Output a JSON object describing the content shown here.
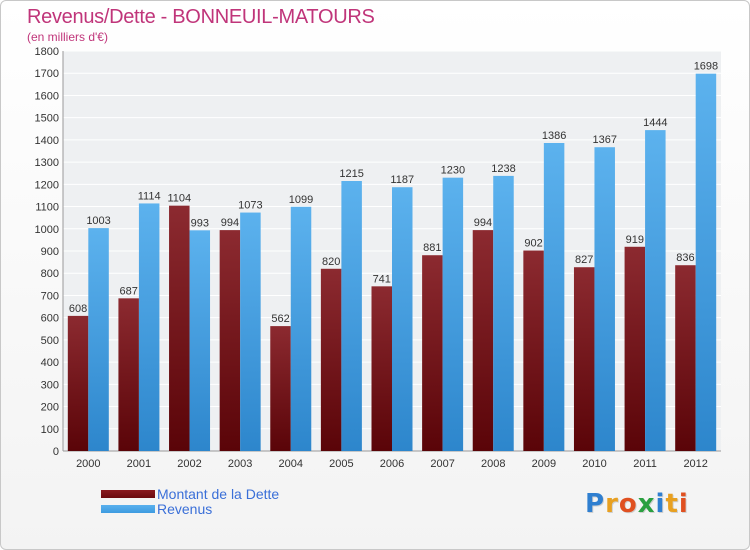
{
  "header": {
    "title": "Revenus/Dette - BONNEUIL-MATOURS",
    "subtitle": "(en milliers d'€)"
  },
  "chart_data": {
    "type": "bar",
    "title": "Revenus/Dette - BONNEUIL-MATOURS",
    "subtitle": "(en milliers d'€)",
    "categories": [
      "2000",
      "2001",
      "2002",
      "2003",
      "2004",
      "2005",
      "2006",
      "2007",
      "2008",
      "2009",
      "2010",
      "2011",
      "2012"
    ],
    "series": [
      {
        "name": "Montant de la Dette",
        "color": "#7a0f14",
        "values": [
          608,
          687,
          1104,
          994,
          562,
          820,
          741,
          881,
          994,
          902,
          827,
          919,
          836
        ]
      },
      {
        "name": "Revenus",
        "color": "#3d9be0",
        "values": [
          1003,
          1114,
          993,
          1073,
          1099,
          1215,
          1187,
          1230,
          1238,
          1386,
          1367,
          1444,
          1698
        ]
      }
    ],
    "ylim": [
      0,
      1800
    ],
    "yticks": [
      0,
      100,
      200,
      300,
      400,
      500,
      600,
      700,
      800,
      900,
      1000,
      1100,
      1200,
      1300,
      1400,
      1500,
      1600,
      1700,
      1800
    ],
    "grid": true,
    "legend_position": "bottom-left"
  },
  "legend": {
    "items": [
      {
        "label": "Montant de la Dette",
        "color": "#6b0a0e"
      },
      {
        "label": "Revenus",
        "color": "#3d9be0"
      }
    ]
  },
  "logo": {
    "letters": [
      "P",
      "r",
      "o",
      "x",
      "i",
      "t",
      "i"
    ],
    "colors": [
      "#2f7fd0",
      "#e8a020",
      "#e05020",
      "#2aa040",
      "#2f7fd0",
      "#e8a020",
      "#e05020"
    ]
  }
}
